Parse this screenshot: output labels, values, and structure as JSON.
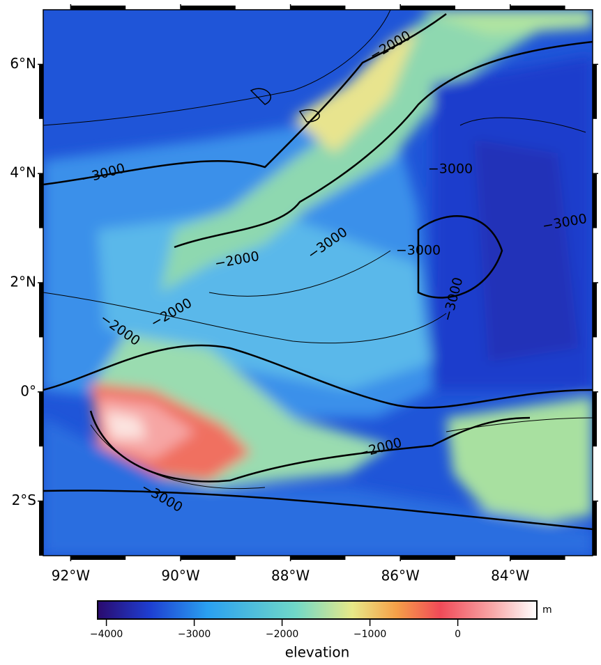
{
  "map": {
    "xlim": [
      -92.5,
      -82.5
    ],
    "ylim": [
      -3,
      7
    ],
    "xticks": [
      {
        "value": -92,
        "label": "92°W"
      },
      {
        "value": -90,
        "label": "90°W"
      },
      {
        "value": -88,
        "label": "88°W"
      },
      {
        "value": -86,
        "label": "86°W"
      },
      {
        "value": -84,
        "label": "84°W"
      }
    ],
    "yticks": [
      {
        "value": 6,
        "label": "6°N"
      },
      {
        "value": 4,
        "label": "4°N"
      },
      {
        "value": 2,
        "label": "2°N"
      },
      {
        "value": 0,
        "label": "0°"
      },
      {
        "value": -2,
        "label": "2°S"
      }
    ],
    "contour_labels": [
      "−2000",
      "−3000",
      "−3000",
      "−2000",
      "−2000",
      "−2000",
      "−3000",
      "−3000",
      "−3000",
      "−3000",
      "−2000",
      "−3000"
    ]
  },
  "colorbar": {
    "range": [
      -4100,
      900
    ],
    "ticks": [
      {
        "value": -4000,
        "label": "−4000"
      },
      {
        "value": -3000,
        "label": "−3000"
      },
      {
        "value": -2000,
        "label": "−2000"
      },
      {
        "value": -1000,
        "label": "−1000"
      },
      0
    ],
    "unit": "m",
    "label": "elevation"
  }
}
